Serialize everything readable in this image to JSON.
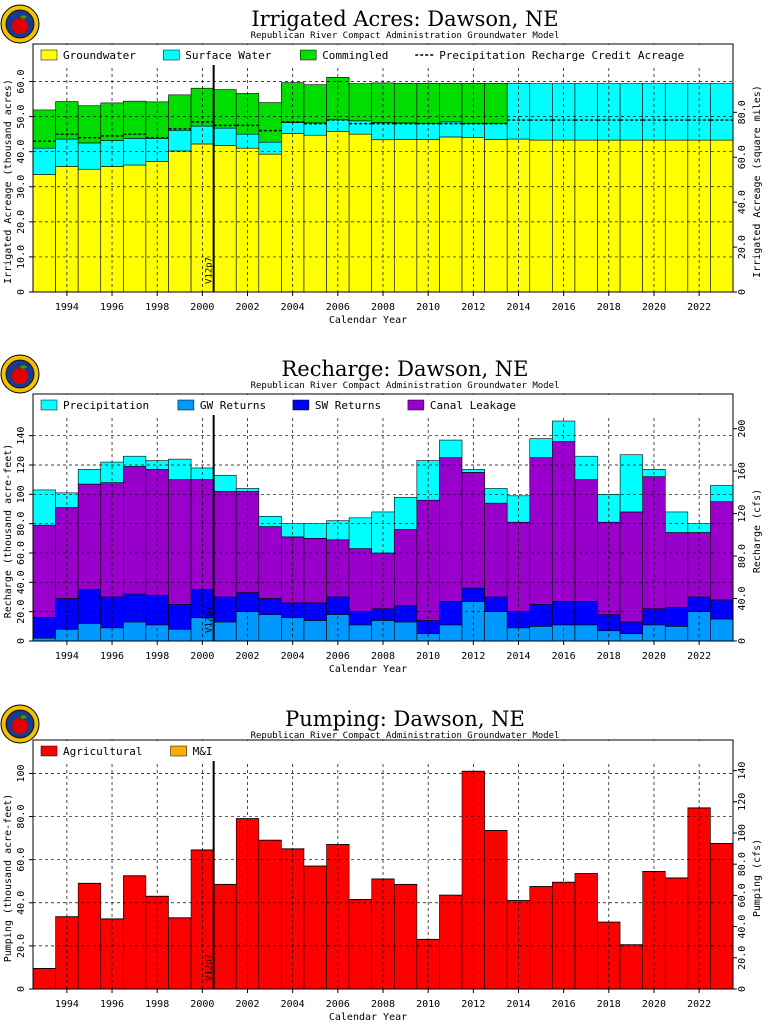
{
  "chart_data": [
    {
      "type": "bar",
      "stacked": true,
      "title": "Irrigated Acres: Dawson, NE",
      "subtitle": "Republican River Compact Administration Groundwater Model",
      "xlabel": "Calendar Year",
      "ylabel": "Irrigated Acreage (thousand acres)",
      "y2label": "Irrigated Acreage (square miles)",
      "xlim": [
        1992.5,
        2023.5
      ],
      "ylim": [
        0,
        63
      ],
      "y2lim": [
        0,
        98.4
      ],
      "xticks": [
        1994,
        1996,
        1998,
        2000,
        2002,
        2004,
        2006,
        2008,
        2010,
        2012,
        2014,
        2016,
        2018,
        2020,
        2022
      ],
      "xtick_labels": [
        "1994",
        "1996",
        "1998",
        "2000",
        "2002",
        "2004",
        "2006",
        "2008",
        "2010",
        "2012",
        "2014",
        "2016",
        "2018",
        "2020",
        "2022"
      ],
      "yticks": [
        0,
        10,
        20,
        30,
        40,
        50,
        60
      ],
      "ytick_labels": [
        "0",
        "10.0",
        "20.0",
        "30.0",
        "40.0",
        "50.0",
        "60.0"
      ],
      "y2ticks": [
        0,
        20,
        40,
        60,
        80
      ],
      "y2tick_labels": [
        "0",
        "20.0",
        "40.0",
        "60.0",
        "80.0"
      ],
      "grid": true,
      "legend_position": "top",
      "marker_x": 2000.5,
      "marker_label": "V12p7",
      "categories": [
        1993,
        1994,
        1995,
        1996,
        1997,
        1998,
        1999,
        2000,
        2001,
        2002,
        2003,
        2004,
        2005,
        2006,
        2007,
        2008,
        2009,
        2010,
        2011,
        2012,
        2013,
        2014,
        2015,
        2016,
        2017,
        2018,
        2019,
        2020,
        2021,
        2022,
        2023
      ],
      "series": [
        {
          "name": "Groundwater",
          "color": "#ffff00",
          "values": [
            33.5,
            35.8,
            35.0,
            35.8,
            36.2,
            37.2,
            40.2,
            42.2,
            41.8,
            41.0,
            39.3,
            45.2,
            44.7,
            45.8,
            45.0,
            43.4,
            43.5,
            43.5,
            44.2,
            44.1,
            43.5,
            43.6,
            43.3,
            43.3,
            43.3,
            43.3,
            43.3,
            43.3,
            43.3,
            43.3,
            43.3
          ]
        },
        {
          "name": "Surface Water",
          "color": "#00ffff",
          "values": [
            7.5,
            7.8,
            7.5,
            7.4,
            7.6,
            6.6,
            5.9,
            5.1,
            4.9,
            4.0,
            3.4,
            3.1,
            3.5,
            3.3,
            3.8,
            4.9,
            4.7,
            4.6,
            4.3,
            3.9,
            4.6,
            15.9,
            16.1,
            16.1,
            16.1,
            16.1,
            16.1,
            16.1,
            16.1,
            16.1,
            16.1
          ]
        },
        {
          "name": "Commingled",
          "color": "#00dd00",
          "values": [
            10.9,
            10.7,
            10.6,
            10.7,
            10.6,
            10.4,
            10.1,
            10.8,
            11.0,
            11.6,
            11.3,
            11.4,
            10.9,
            12.1,
            10.6,
            11.3,
            11.3,
            11.4,
            11.0,
            11.5,
            11.4,
            0,
            0,
            0,
            0,
            0,
            0,
            0,
            0,
            0,
            0
          ]
        }
      ],
      "line_series": {
        "name": "Precipitation Recharge Credit Acreage",
        "values": [
          43.0,
          45.0,
          44.0,
          44.5,
          45.0,
          44.0,
          46.5,
          48.5,
          47.5,
          47.5,
          46.0,
          48.5,
          48.0,
          49.0,
          48.0,
          48.0,
          48.0,
          48.0,
          48.0,
          48.0,
          48.0,
          49.0,
          49.0,
          49.0,
          49.0,
          49.0,
          49.0,
          49.0,
          49.0,
          49.0,
          49.0
        ]
      }
    },
    {
      "type": "bar",
      "stacked": true,
      "title": "Recharge: Dawson, NE",
      "subtitle": "Republican River Compact Administration Groundwater Model",
      "xlabel": "Calendar Year",
      "ylabel": "Recharge (thousand acre-feet)",
      "y2label": "Recharge (cfs)",
      "xlim": [
        1992.5,
        2023.5
      ],
      "ylim": [
        0,
        150
      ],
      "y2lim": [
        0,
        207.2
      ],
      "xticks": [
        1994,
        1996,
        1998,
        2000,
        2002,
        2004,
        2006,
        2008,
        2010,
        2012,
        2014,
        2016,
        2018,
        2020,
        2022
      ],
      "xtick_labels": [
        "1994",
        "1996",
        "1998",
        "2000",
        "2002",
        "2004",
        "2006",
        "2008",
        "2010",
        "2012",
        "2014",
        "2016",
        "2018",
        "2020",
        "2022"
      ],
      "yticks": [
        0,
        20,
        40,
        60,
        80,
        100,
        120,
        140
      ],
      "ytick_labels": [
        "0",
        "20.0",
        "40.0",
        "60.0",
        "80.0",
        "100",
        "120",
        "140"
      ],
      "y2ticks": [
        0,
        40,
        80,
        120,
        160,
        200
      ],
      "y2tick_labels": [
        "0",
        "40.0",
        "80.0",
        "120",
        "160",
        "200"
      ],
      "grid": true,
      "legend_position": "top",
      "marker_x": 2000.5,
      "marker_label": "V12p7",
      "categories": [
        1993,
        1994,
        1995,
        1996,
        1997,
        1998,
        1999,
        2000,
        2001,
        2002,
        2003,
        2004,
        2005,
        2006,
        2007,
        2008,
        2009,
        2010,
        2011,
        2012,
        2013,
        2014,
        2015,
        2016,
        2017,
        2018,
        2019,
        2020,
        2021,
        2022,
        2023
      ],
      "series": [
        {
          "name": "GW Returns",
          "color": "#0099ff",
          "values": [
            2,
            8,
            12,
            9,
            13,
            11,
            8,
            16,
            13,
            20,
            18,
            16,
            14,
            18,
            11,
            14,
            13,
            5,
            11,
            27,
            20,
            9,
            10,
            11,
            11,
            7,
            5,
            11,
            10,
            20,
            15
          ]
        },
        {
          "name": "SW Returns",
          "color": "#0000ff",
          "values": [
            14,
            21,
            23,
            21,
            19,
            20,
            17,
            19,
            17,
            13,
            11,
            10,
            12,
            12,
            9,
            8,
            11,
            9,
            16,
            9,
            10,
            11,
            15,
            16,
            16,
            11,
            8,
            11,
            13,
            10,
            13
          ]
        },
        {
          "name": "Canal Leakage",
          "color": "#9900cc",
          "values": [
            63,
            62,
            72,
            78,
            87,
            86,
            85,
            75,
            72,
            69,
            49,
            45,
            44,
            39,
            43,
            38,
            52,
            82,
            98,
            79,
            64,
            61,
            100,
            109,
            83,
            63,
            75,
            90,
            51,
            44,
            67
          ]
        },
        {
          "name": "Precipitation",
          "color": "#00ffff",
          "values": [
            24,
            10,
            10,
            14,
            7,
            6,
            14,
            8,
            11,
            2,
            7,
            9,
            10,
            13,
            21,
            28,
            22,
            27,
            12,
            2,
            10,
            18,
            13,
            14,
            16,
            19,
            39,
            5,
            14,
            6,
            11
          ]
        }
      ]
    },
    {
      "type": "bar",
      "stacked": true,
      "title": "Pumping: Dawson, NE",
      "subtitle": "Republican River Compact Administration Groundwater Model",
      "xlabel": "Calendar Year",
      "ylabel": "Pumping (thousand acre-feet)",
      "y2label": "Pumping (cfs)",
      "xlim": [
        1992.5,
        2023.5
      ],
      "ylim": [
        0,
        103
      ],
      "y2lim": [
        0,
        142.3
      ],
      "xticks": [
        1994,
        1996,
        1998,
        2000,
        2002,
        2004,
        2006,
        2008,
        2010,
        2012,
        2014,
        2016,
        2018,
        2020,
        2022
      ],
      "xtick_labels": [
        "1994",
        "1996",
        "1998",
        "2000",
        "2002",
        "2004",
        "2006",
        "2008",
        "2010",
        "2012",
        "2014",
        "2016",
        "2018",
        "2020",
        "2022"
      ],
      "yticks": [
        0,
        20,
        40,
        60,
        80,
        100
      ],
      "ytick_labels": [
        "0",
        "20.0",
        "40.0",
        "60.0",
        "80.0",
        "100"
      ],
      "y2ticks": [
        0,
        20,
        40,
        60,
        80,
        100,
        120,
        140
      ],
      "y2tick_labels": [
        "0",
        "20.0",
        "40.0",
        "60.0",
        "80.0",
        "100",
        "120",
        "140"
      ],
      "grid": true,
      "legend_position": "top",
      "marker_x": 2000.5,
      "marker_label": "V12p7",
      "categories": [
        1993,
        1994,
        1995,
        1996,
        1997,
        1998,
        1999,
        2000,
        2001,
        2002,
        2003,
        2004,
        2005,
        2006,
        2007,
        2008,
        2009,
        2010,
        2011,
        2012,
        2013,
        2014,
        2015,
        2016,
        2017,
        2018,
        2019,
        2020,
        2021,
        2022,
        2023
      ],
      "series": [
        {
          "name": "Agricultural",
          "color": "#ff0000",
          "values": [
            9.5,
            33.5,
            49,
            32.5,
            52.5,
            43,
            33,
            64.5,
            48.5,
            79,
            69,
            65,
            57,
            67,
            41.5,
            51,
            48.5,
            23,
            43.5,
            101,
            73.5,
            41,
            47.5,
            49.5,
            53.5,
            31,
            20.5,
            54.5,
            51.5,
            84,
            67.5
          ]
        },
        {
          "name": "M&I",
          "color": "#ffaa00",
          "values": [
            0.1,
            0.1,
            0.1,
            0.1,
            0.1,
            0.1,
            0.1,
            0.1,
            0.1,
            0.1,
            0.1,
            0.1,
            0.1,
            0.1,
            0.1,
            0.1,
            0.1,
            0.1,
            0.1,
            0.1,
            0.1,
            0.1,
            0.1,
            0.1,
            0.1,
            0.1,
            0.1,
            0.1,
            0.1,
            0.1,
            0.1
          ]
        }
      ]
    }
  ]
}
